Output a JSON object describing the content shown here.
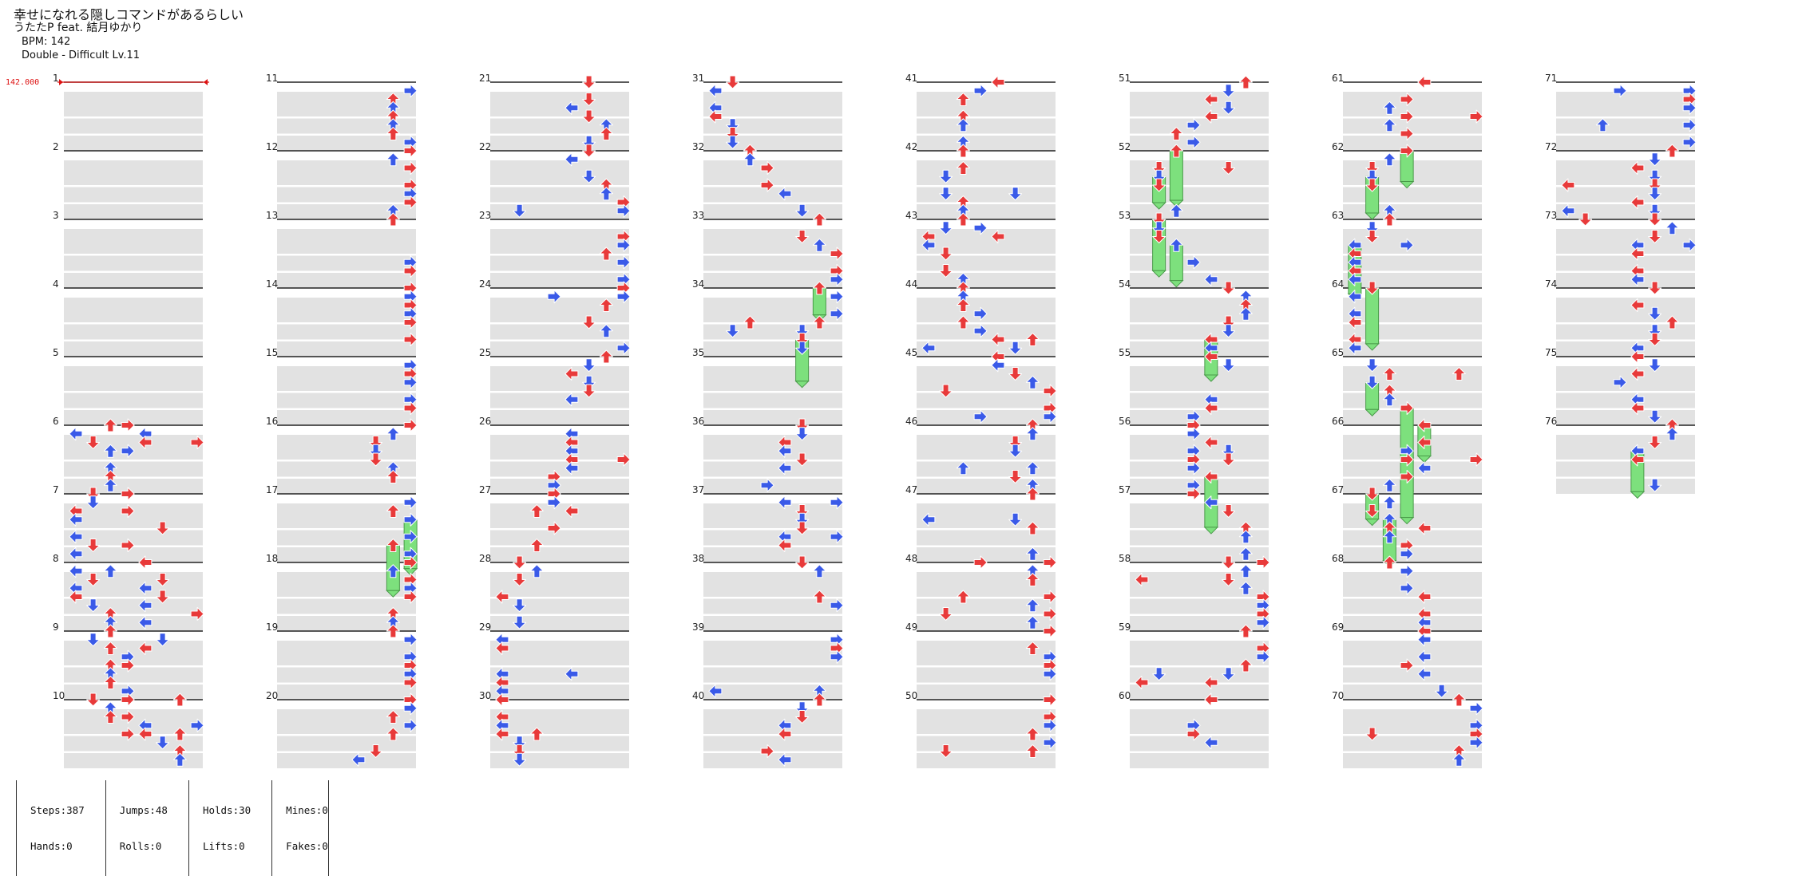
{
  "song": {
    "title": "幸せになれる隠しコマンドがあるらしい",
    "artist": "うたたP feat. 結月ゆかり",
    "bpm_label": "BPM: 142",
    "difficulty_label": "Double - Difficult Lv.11"
  },
  "bpm_marker": {
    "measure": 1,
    "label": "142.000"
  },
  "chart": {
    "total_measures": 76,
    "measures_per_column": 10,
    "lane_count": 8,
    "colors": {
      "quarter_note": "#e83a3a",
      "eighth_note": "#3a5ae8",
      "hold_body": "#7de07d",
      "beat_band": "#e2e2e2",
      "measure_line": "#222222",
      "bpm_marker": "#dd1111"
    }
  },
  "stats": {
    "steps": "Steps:387",
    "hands": "Hands:0",
    "jumps": "Jumps:48",
    "rolls": "Rolls:0",
    "holds": "Holds:30",
    "lifts": "Lifts:0",
    "mines": "Mines:0",
    "fakes": "Fakes:0"
  }
}
